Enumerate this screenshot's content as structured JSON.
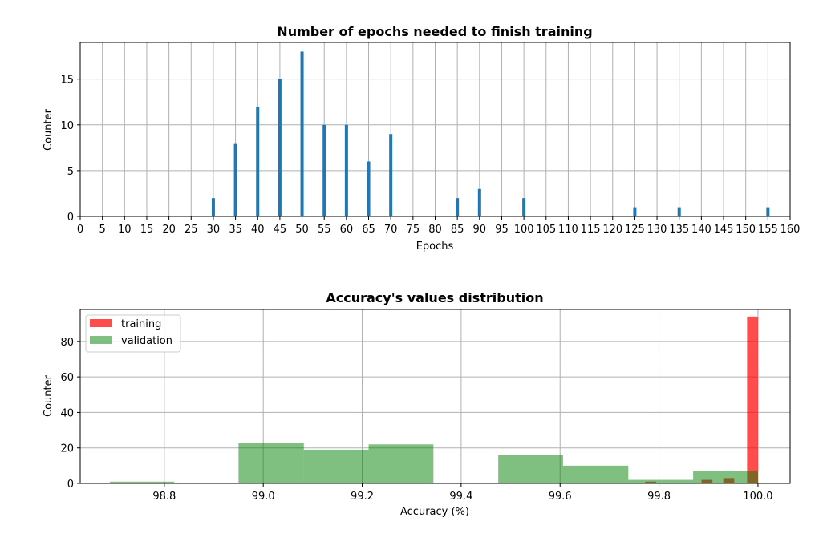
{
  "chart_data": [
    {
      "type": "bar",
      "title": "Number of epochs needed to finish training",
      "xlabel": "Epochs",
      "ylabel": "Counter",
      "xlim": [
        0,
        160
      ],
      "ylim": [
        0,
        19
      ],
      "x_ticks": [
        0,
        5,
        10,
        15,
        20,
        25,
        30,
        35,
        40,
        45,
        50,
        55,
        60,
        65,
        70,
        75,
        80,
        85,
        90,
        95,
        100,
        105,
        110,
        115,
        120,
        125,
        130,
        135,
        140,
        145,
        150,
        155,
        160
      ],
      "y_ticks": [
        0,
        5,
        10,
        15
      ],
      "grid": true,
      "bar_color": "#1f77b4",
      "x": [
        30,
        35,
        40,
        45,
        50,
        55,
        60,
        65,
        70,
        85,
        90,
        100,
        125,
        135,
        155
      ],
      "values": [
        2,
        8,
        12,
        15,
        18,
        10,
        10,
        6,
        9,
        2,
        3,
        2,
        1,
        1,
        1
      ]
    },
    {
      "type": "histogram",
      "title": "Accuracy's values distribution",
      "xlabel": "Accuracy (%)",
      "ylabel": "Counter",
      "xlim": [
        98.63,
        100.065
      ],
      "ylim": [
        0,
        98
      ],
      "x_ticks": [
        98.8,
        99.0,
        99.2,
        99.4,
        99.6,
        99.8,
        100.0
      ],
      "x_tick_labels": [
        "98.8",
        "99.0",
        "99.2",
        "99.4",
        "99.6",
        "99.8",
        "100.0"
      ],
      "y_ticks": [
        0,
        20,
        40,
        60,
        80
      ],
      "grid": true,
      "legend_position": "top-left",
      "series": [
        {
          "name": "training",
          "color": "#ff0000",
          "opacity": 0.7,
          "bins": [
            {
              "x0": 99.772,
              "x1": 99.794,
              "count": 1
            },
            {
              "x0": 99.886,
              "x1": 99.908,
              "count": 2
            },
            {
              "x0": 99.93,
              "x1": 99.952,
              "count": 3
            },
            {
              "x0": 99.978,
              "x1": 100.0,
              "count": 94
            }
          ]
        },
        {
          "name": "validation",
          "color": "#008000",
          "opacity": 0.5,
          "bins": [
            {
              "x0": 98.69,
              "x1": 98.82,
              "count": 1
            },
            {
              "x0": 98.82,
              "x1": 98.95,
              "count": 0
            },
            {
              "x0": 98.95,
              "x1": 99.082,
              "count": 23
            },
            {
              "x0": 99.082,
              "x1": 99.213,
              "count": 19
            },
            {
              "x0": 99.213,
              "x1": 99.344,
              "count": 22
            },
            {
              "x0": 99.344,
              "x1": 99.475,
              "count": 0
            },
            {
              "x0": 99.475,
              "x1": 99.606,
              "count": 16
            },
            {
              "x0": 99.606,
              "x1": 99.738,
              "count": 10
            },
            {
              "x0": 99.738,
              "x1": 99.869,
              "count": 2
            },
            {
              "x0": 99.869,
              "x1": 100.0,
              "count": 7
            }
          ]
        }
      ]
    }
  ]
}
